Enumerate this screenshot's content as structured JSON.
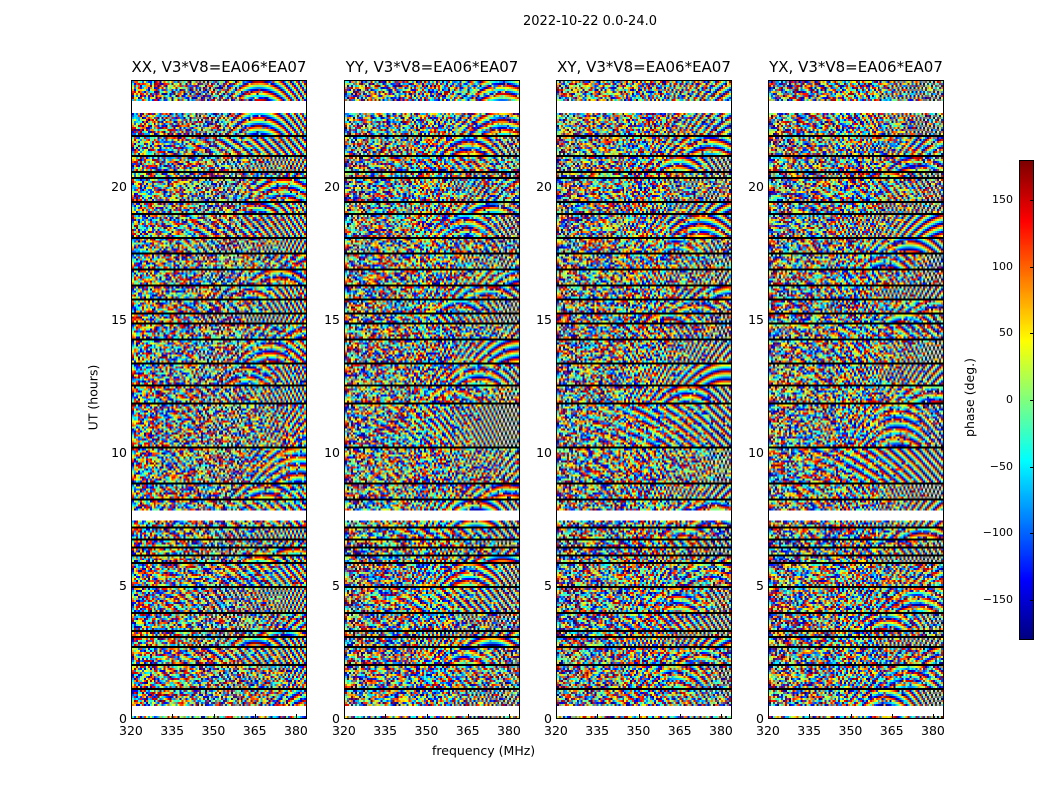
{
  "chart_data": {
    "type": "heatmap",
    "title": "2022-10-22 0.0-24.0",
    "xlabel": "frequency (MHz)",
    "ylabel": "UT (hours)",
    "xlim": [
      320,
      384
    ],
    "ylim": [
      0,
      24
    ],
    "xticks": [
      "320",
      "335",
      "350",
      "365",
      "380"
    ],
    "xtick_values": [
      320,
      335,
      350,
      365,
      380
    ],
    "yticks": [
      "0",
      "5",
      "10",
      "15",
      "20"
    ],
    "ytick_values": [
      0,
      5,
      10,
      15,
      20
    ],
    "panels": [
      {
        "title": "XX, V3*V8=EA06*EA07"
      },
      {
        "title": "YY, V3*V8=EA06*EA07"
      },
      {
        "title": "XY, V3*V8=EA06*EA07"
      },
      {
        "title": "YX, V3*V8=EA06*EA07"
      }
    ],
    "flagged_hours": [
      [
        0.12,
        0.45
      ],
      [
        7.45,
        7.8
      ],
      [
        22.85,
        23.2
      ]
    ],
    "scan_boundaries_hours": [
      1.1,
      2.0,
      2.7,
      3.1,
      3.3,
      4.0,
      5.0,
      5.9,
      6.2,
      6.5,
      6.8,
      7.2,
      8.3,
      8.9,
      10.2,
      11.9,
      12.6,
      13.4,
      14.3,
      14.9,
      15.3,
      15.8,
      16.3,
      16.9,
      17.5,
      18.1,
      19.0,
      19.5,
      20.4,
      20.6,
      21.2,
      22.0
    ],
    "colorbar": {
      "label": "phase (deg.)",
      "range": [
        -180,
        180
      ],
      "ticks": [
        "150",
        "100",
        "50",
        "0",
        "−50",
        "−100",
        "−150"
      ],
      "tick_values": [
        150,
        100,
        50,
        0,
        -50,
        -100,
        -150
      ],
      "colormap": "jet"
    }
  }
}
